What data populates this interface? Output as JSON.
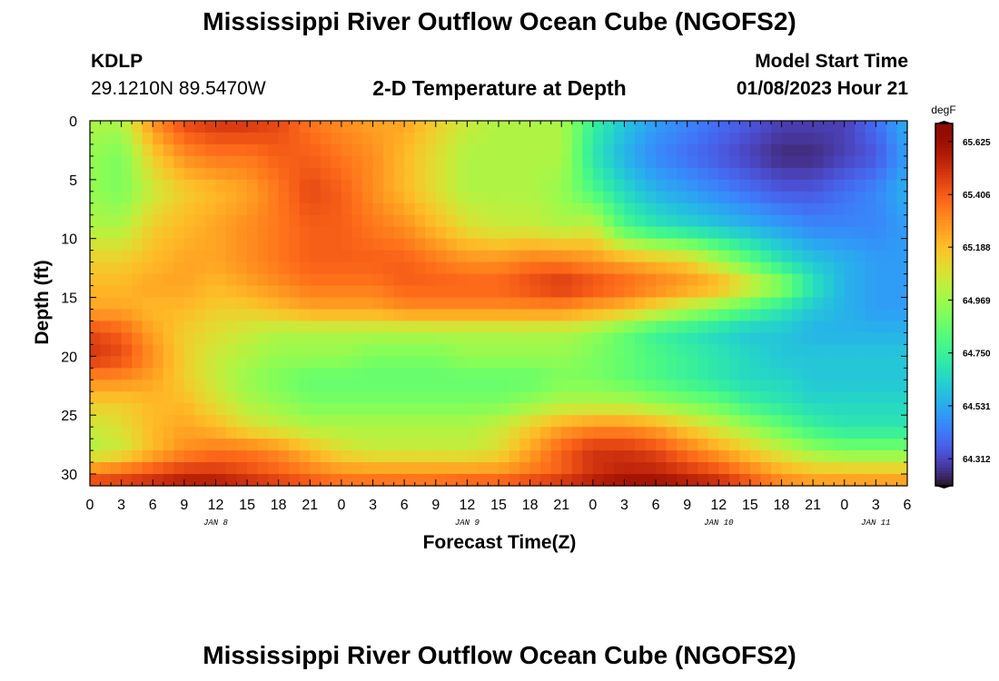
{
  "page": {
    "title": "Mississippi River Outflow Ocean Cube (NGOFS2)",
    "title_repeat": "Mississippi River Outflow Ocean Cube (NGOFS2)",
    "station_id": "KDLP",
    "station_coords": "29.1210N  89.5470W",
    "subtitle": "2-D Temperature at Depth",
    "model_start_label": "Model Start Time",
    "model_start_value": "01/08/2023 Hour 21"
  },
  "chart_data": {
    "type": "heatmap",
    "title": "2-D Temperature at Depth",
    "xlabel": "Forecast Time(Z)",
    "ylabel": "Depth (ft)",
    "x_range_hours": [
      0,
      78
    ],
    "x_tick_labels": [
      "0",
      "3",
      "6",
      "9",
      "12",
      "15",
      "18",
      "21",
      "0",
      "3",
      "6",
      "9",
      "12",
      "15",
      "18",
      "21",
      "0",
      "3",
      "6",
      "9",
      "12",
      "15",
      "18",
      "21",
      "0",
      "3",
      "6"
    ],
    "date_labels": [
      {
        "label": "JAN 8",
        "hour": 12
      },
      {
        "label": "JAN 9",
        "hour": 36
      },
      {
        "label": "JAN 10",
        "hour": 60
      },
      {
        "label": "JAN 11",
        "hour": 75
      }
    ],
    "y_range_ft": [
      0,
      31
    ],
    "y_ticks": [
      0,
      5,
      10,
      15,
      20,
      25,
      30
    ],
    "y_inverted": true,
    "colorbar": {
      "unit": "degF",
      "min": 64.2,
      "max": 65.7,
      "tick_values": [
        65.625,
        65.406,
        65.188,
        64.969,
        64.75,
        64.531,
        64.312
      ],
      "tick_labels": [
        "65.625",
        "65.406",
        "65.188",
        "64.969",
        "64.750",
        "64.531",
        "64.312"
      ],
      "colormap": "turbo"
    },
    "depth_levels_ft": [
      0,
      3,
      6,
      9,
      12,
      14,
      16,
      18,
      20,
      22,
      24,
      26,
      28,
      30,
      31
    ],
    "time_knots_hours": [
      0,
      3,
      6,
      9,
      12,
      15,
      18,
      21,
      24,
      27,
      30,
      33,
      36,
      39,
      42,
      45,
      48,
      51,
      54,
      57,
      60,
      63,
      66,
      69,
      72,
      75,
      78
    ],
    "values_degF": [
      [
        65.0,
        65.0,
        65.3,
        65.45,
        65.5,
        65.5,
        65.45,
        65.35,
        65.3,
        65.25,
        65.25,
        65.15,
        65.05,
        65.0,
        65.0,
        65.0,
        64.75,
        64.6,
        64.5,
        64.45,
        64.4,
        64.35,
        64.3,
        64.3,
        64.3,
        64.4,
        64.55
      ],
      [
        64.95,
        64.9,
        65.15,
        65.3,
        65.35,
        65.35,
        65.4,
        65.4,
        65.35,
        65.3,
        65.2,
        65.1,
        65.0,
        65.0,
        65.0,
        65.0,
        64.7,
        64.55,
        64.45,
        64.4,
        64.35,
        64.3,
        64.25,
        64.25,
        64.3,
        64.35,
        64.5
      ],
      [
        64.95,
        64.9,
        65.05,
        65.15,
        65.2,
        65.25,
        65.35,
        65.45,
        65.4,
        65.3,
        65.2,
        65.1,
        65.0,
        65.0,
        65.0,
        64.95,
        64.8,
        64.65,
        64.55,
        64.5,
        64.45,
        64.4,
        64.35,
        64.35,
        64.4,
        64.45,
        64.55
      ],
      [
        65.0,
        65.0,
        65.15,
        65.2,
        65.25,
        65.3,
        65.35,
        65.4,
        65.4,
        65.35,
        65.3,
        65.2,
        65.1,
        65.05,
        65.05,
        65.0,
        65.05,
        64.8,
        64.7,
        64.65,
        64.6,
        64.55,
        64.5,
        64.45,
        64.45,
        64.45,
        64.5
      ],
      [
        65.15,
        65.15,
        65.2,
        65.25,
        65.25,
        65.3,
        65.35,
        65.4,
        65.4,
        65.4,
        65.4,
        65.35,
        65.3,
        65.3,
        65.35,
        65.35,
        65.3,
        65.25,
        65.2,
        65.15,
        65.0,
        64.85,
        64.7,
        64.6,
        64.55,
        64.5,
        64.5
      ],
      [
        65.2,
        65.2,
        65.25,
        65.25,
        65.2,
        65.25,
        65.3,
        65.35,
        65.35,
        65.35,
        65.4,
        65.4,
        65.4,
        65.4,
        65.45,
        65.5,
        65.45,
        65.4,
        65.35,
        65.3,
        65.25,
        65.1,
        64.95,
        64.7,
        64.55,
        64.5,
        64.5
      ],
      [
        65.25,
        65.25,
        65.2,
        65.2,
        65.15,
        65.15,
        65.2,
        65.25,
        65.25,
        65.25,
        65.3,
        65.3,
        65.3,
        65.3,
        65.3,
        65.3,
        65.25,
        65.2,
        65.1,
        65.0,
        64.9,
        64.8,
        64.7,
        64.6,
        64.55,
        64.5,
        64.5
      ],
      [
        65.45,
        65.4,
        65.25,
        65.15,
        65.1,
        65.05,
        65.0,
        65.0,
        65.0,
        65.0,
        65.0,
        65.0,
        65.0,
        65.0,
        65.0,
        65.0,
        64.95,
        64.85,
        64.75,
        64.7,
        64.65,
        64.6,
        64.6,
        64.55,
        64.55,
        64.55,
        64.55
      ],
      [
        65.5,
        65.45,
        65.3,
        65.15,
        65.05,
        65.0,
        64.95,
        64.95,
        64.95,
        64.9,
        64.9,
        64.9,
        64.95,
        64.95,
        64.95,
        64.95,
        64.9,
        64.85,
        64.8,
        64.75,
        64.7,
        64.65,
        64.6,
        64.6,
        64.6,
        64.6,
        64.6
      ],
      [
        65.3,
        65.3,
        65.25,
        65.15,
        65.05,
        64.95,
        64.9,
        64.85,
        64.85,
        64.85,
        64.85,
        64.85,
        64.85,
        64.85,
        64.85,
        64.9,
        64.9,
        64.85,
        64.8,
        64.75,
        64.7,
        64.65,
        64.65,
        64.6,
        64.6,
        64.6,
        64.6
      ],
      [
        65.15,
        65.15,
        65.2,
        65.2,
        65.1,
        65.0,
        64.95,
        64.9,
        64.9,
        64.9,
        64.9,
        64.9,
        64.9,
        64.9,
        64.95,
        65.0,
        65.0,
        65.0,
        64.95,
        64.9,
        64.85,
        64.75,
        64.7,
        64.65,
        64.65,
        64.65,
        64.65
      ],
      [
        65.05,
        65.1,
        65.2,
        65.25,
        65.2,
        65.1,
        65.05,
        65.0,
        65.0,
        65.0,
        65.0,
        65.0,
        65.0,
        65.05,
        65.15,
        65.25,
        65.3,
        65.3,
        65.25,
        65.15,
        65.05,
        64.95,
        64.85,
        64.75,
        64.7,
        64.7,
        64.7
      ],
      [
        65.0,
        65.05,
        65.2,
        65.3,
        65.35,
        65.35,
        65.3,
        65.2,
        65.1,
        65.05,
        65.05,
        65.05,
        65.05,
        65.1,
        65.25,
        65.4,
        65.5,
        65.5,
        65.45,
        65.35,
        65.25,
        65.15,
        65.05,
        64.95,
        64.9,
        64.9,
        64.9
      ],
      [
        65.35,
        65.4,
        65.45,
        65.5,
        65.5,
        65.45,
        65.4,
        65.35,
        65.3,
        65.3,
        65.3,
        65.3,
        65.3,
        65.3,
        65.35,
        65.4,
        65.5,
        65.55,
        65.55,
        65.5,
        65.45,
        65.35,
        65.25,
        65.2,
        65.2,
        65.2,
        65.2
      ],
      [
        65.5,
        65.5,
        65.55,
        65.6,
        65.6,
        65.55,
        65.5,
        65.45,
        65.4,
        65.4,
        65.4,
        65.4,
        65.45,
        65.45,
        65.5,
        65.55,
        65.6,
        65.65,
        65.65,
        65.6,
        65.55,
        65.45,
        65.35,
        65.3,
        65.3,
        65.3,
        65.3
      ]
    ]
  }
}
